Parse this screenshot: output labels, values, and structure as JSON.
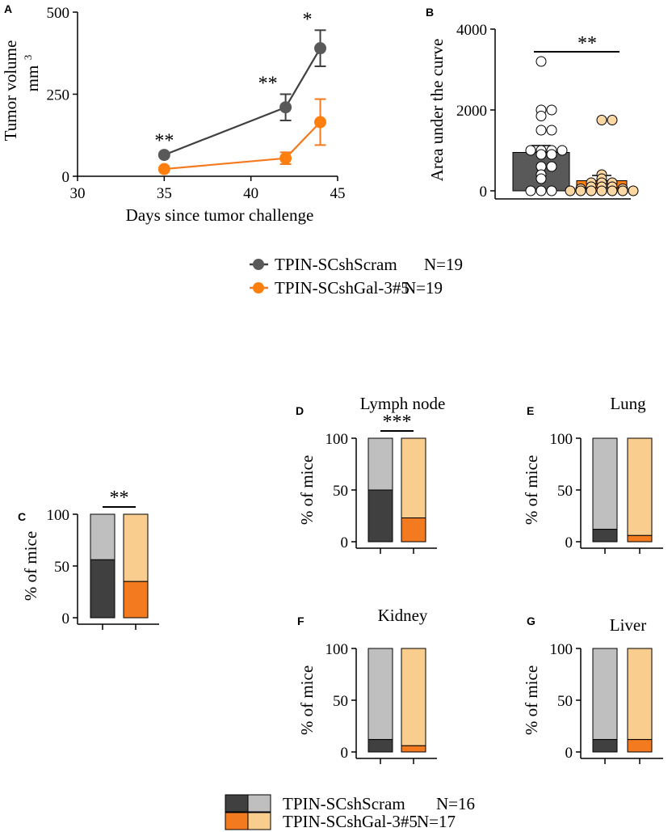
{
  "colors": {
    "scram": "#595959",
    "scram_dark": "#404040",
    "scram_light": "#bfbfc0",
    "gal": "#ff7f0e",
    "gal_dark": "#f47a1f",
    "gal_light": "#f9cd8e",
    "point_fill_gal": "#fbd7a4"
  },
  "legend_top": {
    "items": [
      {
        "label": "TPIN-SCshScram",
        "n": "N=19"
      },
      {
        "label": "TPIN-SCshGal-3#5",
        "n": "N=19"
      }
    ]
  },
  "legend_bottom": {
    "items": [
      {
        "label": "TPIN-SCshScram",
        "n": "N=16"
      },
      {
        "label": "TPIN-SCshGal-3#5",
        "n": "N=17"
      }
    ]
  },
  "chart_data": [
    {
      "panel": "A",
      "type": "line",
      "title": "",
      "xlabel": "Days since tumor challenge",
      "ylabel_line1": "Tumor volume",
      "ylabel_line2": "mm",
      "ylabel_sup": "3",
      "xlim": [
        30,
        45
      ],
      "ylim": [
        0,
        500
      ],
      "xticks": [
        "30",
        "35",
        "40",
        "45"
      ],
      "yticks": [
        "0",
        "250",
        "500"
      ],
      "series": [
        {
          "name": "TPIN-SCshScram",
          "x": [
            35,
            42,
            44
          ],
          "y": [
            65,
            210,
            390
          ],
          "err": [
            0,
            40,
            55
          ]
        },
        {
          "name": "TPIN-SCshGal-3#5",
          "x": [
            35,
            42,
            44
          ],
          "y": [
            22,
            55,
            165
          ],
          "err": [
            0,
            18,
            70
          ]
        }
      ],
      "annotations": [
        {
          "x": 35,
          "label": "**"
        },
        {
          "x": 42,
          "label": "**"
        },
        {
          "x": 44,
          "label": "*"
        }
      ]
    },
    {
      "panel": "B",
      "type": "bar",
      "ylabel": "Area under the curve",
      "ylim": [
        0,
        4000
      ],
      "yticks": [
        "0",
        "2000",
        "4000"
      ],
      "categories": [
        "TPIN-SCshScram",
        "TPIN-SCshGal-3#5"
      ],
      "values": [
        950,
        250
      ],
      "sem": [
        170,
        130
      ],
      "significance": "**",
      "points": [
        [
          3200,
          2000,
          2000,
          1850,
          1500,
          1500,
          1000,
          1000,
          1000,
          1000,
          900,
          900,
          600,
          600,
          400,
          300,
          0,
          0,
          0
        ],
        [
          1750,
          1750,
          400,
          300,
          200,
          200,
          200,
          100,
          100,
          100,
          50,
          50,
          0,
          0,
          0,
          0,
          0,
          0,
          0
        ]
      ]
    },
    {
      "panel": "C",
      "type": "bar",
      "stacked": true,
      "title": "",
      "ylabel": "% of mice",
      "ylim": [
        0,
        100
      ],
      "yticks": [
        "0",
        "50",
        "100"
      ],
      "categories": [
        "TPIN-SCshScram",
        "TPIN-SCshGal-3#5"
      ],
      "positive": [
        56,
        35
      ],
      "significance": "**"
    },
    {
      "panel": "D",
      "type": "bar",
      "stacked": true,
      "title": "Lymph node",
      "ylabel": "% of mice",
      "ylim": [
        0,
        100
      ],
      "yticks": [
        "0",
        "50",
        "100"
      ],
      "categories": [
        "TPIN-SCshScram",
        "TPIN-SCshGal-3#5"
      ],
      "positive": [
        50,
        23
      ],
      "significance": "***"
    },
    {
      "panel": "E",
      "type": "bar",
      "stacked": true,
      "title": "Lung",
      "ylabel": "% of mice",
      "ylim": [
        0,
        100
      ],
      "yticks": [
        "0",
        "50",
        "100"
      ],
      "categories": [
        "TPIN-SCshScram",
        "TPIN-SCshGal-3#5"
      ],
      "positive": [
        12,
        6
      ],
      "significance": ""
    },
    {
      "panel": "F",
      "type": "bar",
      "stacked": true,
      "title": "Kidney",
      "ylabel": "% of mice",
      "ylim": [
        0,
        100
      ],
      "yticks": [
        "0",
        "50",
        "100"
      ],
      "categories": [
        "TPIN-SCshScram",
        "TPIN-SCshGal-3#5"
      ],
      "positive": [
        12,
        6
      ],
      "significance": ""
    },
    {
      "panel": "G",
      "type": "bar",
      "stacked": true,
      "title": "Liver",
      "ylabel": "% of mice",
      "ylim": [
        0,
        100
      ],
      "yticks": [
        "0",
        "50",
        "100"
      ],
      "categories": [
        "TPIN-SCshScram",
        "TPIN-SCshGal-3#5"
      ],
      "positive": [
        12,
        12
      ],
      "significance": ""
    }
  ]
}
